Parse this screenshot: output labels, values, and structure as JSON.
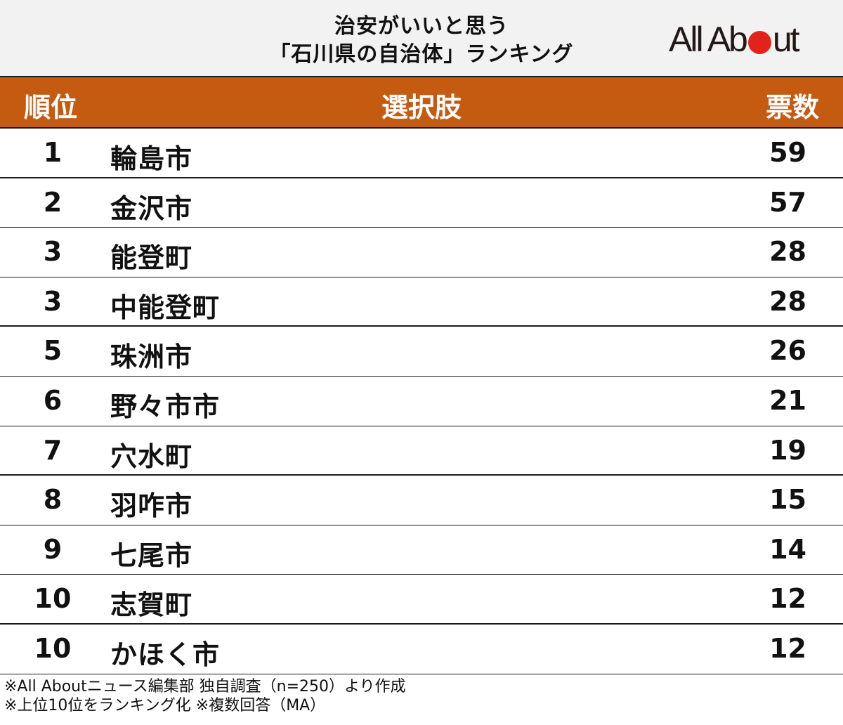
{
  "title": {
    "line1": "治安がいいと思う",
    "line2": "「石川県の自治体」ランキング"
  },
  "logo": {
    "text_before": "All Ab",
    "text_after": "ut",
    "dot_color": "#e2231a"
  },
  "colors": {
    "header_bg": "#c55a11",
    "header_text": "#ffffff",
    "title_bg": "#f2f2f2"
  },
  "table": {
    "headers": {
      "rank": "順位",
      "choice": "選択肢",
      "votes": "票数"
    },
    "rows": [
      {
        "rank": "1",
        "name": "輪島市",
        "votes": "59"
      },
      {
        "rank": "2",
        "name": "金沢市",
        "votes": "57"
      },
      {
        "rank": "3",
        "name": "能登町",
        "votes": "28"
      },
      {
        "rank": "3",
        "name": "中能登町",
        "votes": "28"
      },
      {
        "rank": "5",
        "name": "珠洲市",
        "votes": "26"
      },
      {
        "rank": "6",
        "name": "野々市市",
        "votes": "21"
      },
      {
        "rank": "7",
        "name": "穴水町",
        "votes": "19"
      },
      {
        "rank": "8",
        "name": "羽咋市",
        "votes": "15"
      },
      {
        "rank": "9",
        "name": "七尾市",
        "votes": "14"
      },
      {
        "rank": "10",
        "name": "志賀町",
        "votes": "12"
      },
      {
        "rank": "10",
        "name": "かほく市",
        "votes": "12"
      }
    ]
  },
  "notes": {
    "line1": "※All Aboutニュース編集部 独自調査（n=250）より作成",
    "line2": "※上位10位をランキング化 ※複数回答（MA）"
  },
  "chart_data": {
    "type": "table",
    "title": "治安がいいと思う「石川県の自治体」ランキング",
    "columns": [
      "順位",
      "選択肢",
      "票数"
    ],
    "categories": [
      "輪島市",
      "金沢市",
      "能登町",
      "中能登町",
      "珠洲市",
      "野々市市",
      "穴水町",
      "羽咋市",
      "七尾市",
      "志賀町",
      "かほく市"
    ],
    "ranks": [
      1,
      2,
      3,
      3,
      5,
      6,
      7,
      8,
      9,
      10,
      10
    ],
    "values": [
      59,
      57,
      28,
      28,
      26,
      21,
      19,
      15,
      14,
      12,
      12
    ],
    "annotations": [
      "※All Aboutニュース編集部 独自調査（n=250）より作成",
      "※上位10位をランキング化 ※複数回答（MA）"
    ]
  }
}
